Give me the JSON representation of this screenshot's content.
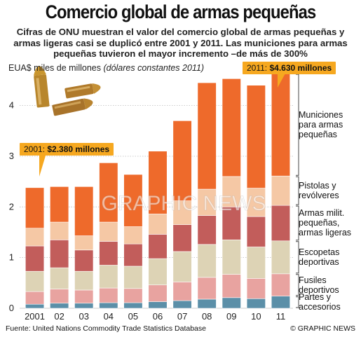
{
  "title": "Comercio global de armas pequeñas",
  "subtitle": "Cifras de ONU muestran el valor del comercio global de armas pequeñas y armas ligeras casi se duplicó entre 2001 y 2011. Las municiones para armas pequeñas tuvieron el mayor incremento –de más de 300%",
  "unit_label": {
    "main": "EUA$ miles de millones ",
    "note": "(dólares constantes  2011)"
  },
  "callouts": {
    "first": {
      "year": "2001: ",
      "value": "$2.380 millones"
    },
    "last": {
      "year": "2011: ",
      "value": "$4.630 millones"
    }
  },
  "watermark": "GRAPHIC NEWS",
  "source": "Fuente: United Nations Commodity Trade Statistics Database",
  "credit": "© GRAPHIC NEWS",
  "chart_data": {
    "type": "bar",
    "stacked": true,
    "categories": [
      "2001",
      "02",
      "03",
      "04",
      "05",
      "06",
      "07",
      "08",
      "09",
      "10",
      "11"
    ],
    "ylim": [
      0,
      4.7
    ],
    "yticks": [
      0,
      1,
      2,
      3,
      4
    ],
    "series": [
      {
        "name": "Partes y accesorios",
        "color": "#5b8fa8",
        "values": [
          0.08,
          0.1,
          0.1,
          0.11,
          0.11,
          0.13,
          0.15,
          0.18,
          0.21,
          0.19,
          0.24
        ]
      },
      {
        "name": "Fusiles deportivos",
        "color": "#e8a3a0",
        "values": [
          0.25,
          0.28,
          0.26,
          0.29,
          0.28,
          0.33,
          0.37,
          0.43,
          0.46,
          0.4,
          0.44
        ]
      },
      {
        "name": "Escopetas deportivas",
        "color": "#ddd3b5",
        "values": [
          0.4,
          0.42,
          0.37,
          0.45,
          0.44,
          0.52,
          0.6,
          0.65,
          0.68,
          0.62,
          0.65
        ]
      },
      {
        "name": "Armas milit. pequeñas, armas ligeras",
        "color": "#c25d5b",
        "values": [
          0.5,
          0.55,
          0.42,
          0.47,
          0.44,
          0.48,
          0.53,
          0.57,
          0.65,
          0.6,
          0.7
        ]
      },
      {
        "name": "Pistolas y revólveres",
        "color": "#f5c8a5",
        "values": [
          0.35,
          0.35,
          0.28,
          0.38,
          0.34,
          0.4,
          0.47,
          0.52,
          0.6,
          0.56,
          0.58
        ]
      },
      {
        "name": "Municiones para armas pequeñas",
        "color": "#ee6a2b",
        "values": [
          0.8,
          0.7,
          0.97,
          1.17,
          1.03,
          1.24,
          1.58,
          2.1,
          1.93,
          2.03,
          2.02
        ]
      }
    ]
  }
}
